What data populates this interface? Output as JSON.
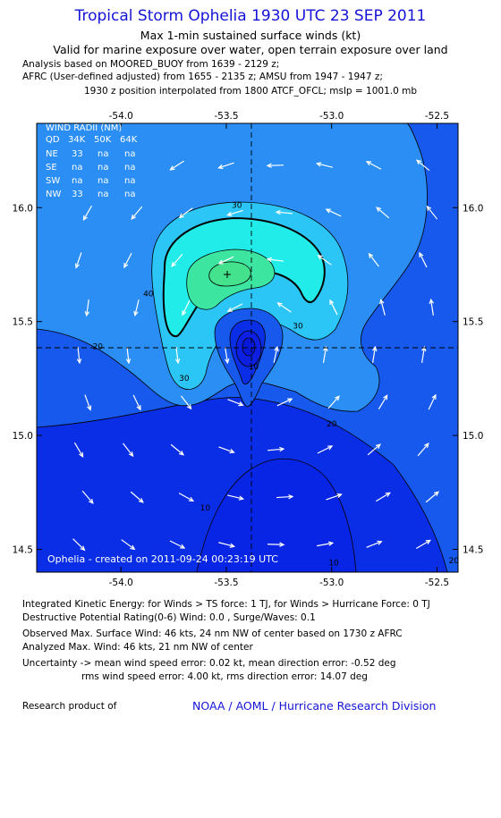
{
  "header": {
    "title": "Tropical Storm Ophelia 1930 UTC 23 SEP 2011",
    "subtitle1": "Max 1-min sustained surface winds (kt)",
    "subtitle2": "Valid for marine exposure over water, open terrain exposure over land",
    "analysis": "Analysis based on MOORED_BUOY from 1639 - 2129 z;",
    "afrc": "AFRC (User-defined adjusted) from 1655 - 2135 z; AMSU from 1947 - 1947 z;",
    "position": "1930 z position interpolated from 1800 ATCF_OFCL; mslp = 1001.0 mb"
  },
  "wind_radii": {
    "title": "WIND RADII (NM)",
    "header": [
      "QD",
      "34K",
      "50K",
      "64K"
    ],
    "rows": [
      [
        "NE",
        "33",
        "na",
        "na"
      ],
      [
        "SE",
        "na",
        "na",
        "na"
      ],
      [
        "SW",
        "na",
        "na",
        "na"
      ],
      [
        "NW",
        "33",
        "na",
        "na"
      ]
    ]
  },
  "created": "Ophelia - created on 2011-09-24 00:23:19 UTC",
  "chart_data": {
    "type": "contour",
    "title": "Tropical Storm Ophelia 1930 UTC 23 SEP 2011",
    "variable": "Max 1-min sustained surface winds (kt)",
    "xlim": [
      -54.4,
      -52.4
    ],
    "ylim": [
      14.4,
      16.37
    ],
    "x_ticks": [
      -54.0,
      -53.5,
      -53.0,
      -52.5
    ],
    "x_tick_labels": [
      "-54.0",
      "-53.5",
      "-53.0",
      "-52.5"
    ],
    "y_ticks": [
      16.0,
      15.5,
      15.0,
      14.5
    ],
    "y_tick_labels": [
      "16.0",
      "15.5",
      "15.0",
      "14.5"
    ],
    "center": {
      "lon": -53.4,
      "lat": 15.36
    },
    "max_wind_location": {
      "lon": -53.5,
      "lat": 15.69
    },
    "contour_levels": [
      10,
      20,
      30,
      40
    ],
    "contour_labels": [
      {
        "text": "30",
        "lon": -53.45,
        "lat": 16.0
      },
      {
        "text": "40",
        "lon": -53.87,
        "lat": 15.61
      },
      {
        "text": "30",
        "lon": -53.16,
        "lat": 15.47
      },
      {
        "text": "20",
        "lon": -54.11,
        "lat": 15.38
      },
      {
        "text": "30",
        "lon": -53.7,
        "lat": 15.24
      },
      {
        "text": "10",
        "lon": -53.37,
        "lat": 15.29
      },
      {
        "text": "20",
        "lon": -53.0,
        "lat": 15.04
      },
      {
        "text": "10",
        "lon": -53.6,
        "lat": 14.67
      },
      {
        "text": "10",
        "lon": -52.99,
        "lat": 14.43
      },
      {
        "text": "20",
        "lon": -52.42,
        "lat": 14.44
      }
    ],
    "grid": false
  },
  "info": {
    "ike": "Integrated Kinetic Energy:  for Winds > TS force: 1 TJ,  for Winds > Hurricane Force: 0 TJ",
    "dpr": "Destructive Potential Rating(0-6)   Wind: 0.0 , Surge/Waves: 0.1",
    "observed": "Observed Max. Surface Wind: 46 kts, 24 nm NW of center based on 1730 z AFRC",
    "analyzed": "Analyzed Max. Wind: 46 kts, 21 nm NW of center",
    "uncert1": "Uncertainty -> mean wind speed error: 0.02 kt,   mean direction error:  -0.52 deg",
    "uncert2": "rms wind speed error: 4.00 kt,   rms direction error: 14.07 deg",
    "research": "Research product of",
    "org": "NOAA / AOML / Hurricane Research Division"
  },
  "colors": {
    "title": "#1414d8",
    "level_0_10": "#0a2ee6",
    "level_10_20": "#1659ec",
    "level_20_30": "#2a8ef4",
    "level_30_40": "#2cc6f6",
    "level_40_45": "#22ecea",
    "level_45_plus": "#3ce6a0",
    "calm_core": "#0d1fe0",
    "arrows": "#ffffff"
  }
}
